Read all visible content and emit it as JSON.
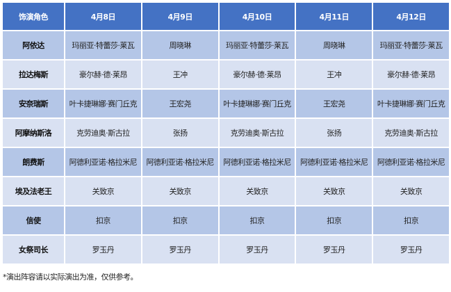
{
  "header": {
    "role": "饰演角色",
    "dates": [
      "4月8日",
      "4月9日",
      "4月10日",
      "4月11日",
      "4月12日"
    ]
  },
  "colors": {
    "header": "#4472C4",
    "row_odd": "#B4C6E7",
    "row_even": "#D9E1F2"
  },
  "rows": [
    {
      "role": "阿依达",
      "cast": [
        "玛丽亚·特蕾莎·莱瓦",
        "周晓琳",
        "玛丽亚·特蕾莎·莱瓦",
        "周晓琳",
        "玛丽亚·特蕾莎·莱瓦"
      ]
    },
    {
      "role": "拉达梅斯",
      "cast": [
        "豪尔赫·德·莱昂",
        "王冲",
        "豪尔赫·德·莱昂",
        "王冲",
        "豪尔赫·德·莱昂"
      ]
    },
    {
      "role": "安奈瑞斯",
      "cast": [
        "叶卡捷琳娜·赛门丘克",
        "王宏尧",
        "叶卡捷琳娜·赛门丘克",
        "王宏尧",
        "叶卡捷琳娜·赛门丘克"
      ]
    },
    {
      "role": "阿摩纳斯洛",
      "cast": [
        "克劳迪奥·斯古拉",
        "张扬",
        "克劳迪奥·斯古拉",
        "张扬",
        "克劳迪奥·斯古拉"
      ]
    },
    {
      "role": "朗费斯",
      "cast": [
        "阿德利亚诺·格拉米尼",
        "阿德利亚诺·格拉米尼",
        "阿德利亚诺·格拉米尼",
        "阿德利亚诺·格拉米尼",
        "阿德利亚诺·格拉米尼"
      ]
    },
    {
      "role": "埃及法老王",
      "cast": [
        "关致京",
        "关致京",
        "关致京",
        "关致京",
        "关致京"
      ]
    },
    {
      "role": "信使",
      "cast": [
        "扣京",
        "扣京",
        "扣京",
        "扣京",
        "扣京"
      ]
    },
    {
      "role": "女祭司长",
      "cast": [
        "罗玉丹",
        "罗玉丹",
        "罗玉丹",
        "罗玉丹",
        "罗玉丹"
      ]
    }
  ],
  "note": "*演出阵容请以实际演出为准，仅供参考。"
}
